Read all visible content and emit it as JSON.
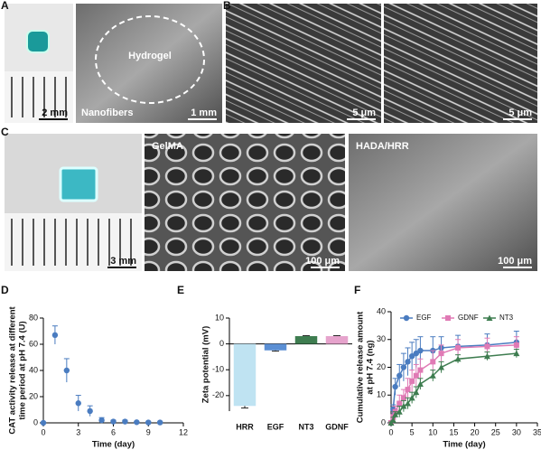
{
  "panel_letters": [
    "A",
    "B",
    "C",
    "D",
    "E",
    "F"
  ],
  "images": [
    {
      "scale": "2 mm"
    },
    {
      "labels": [
        "Hydrogel",
        "Nanofibers"
      ],
      "scale": "1 mm"
    },
    {
      "scale": "5 μm"
    },
    {
      "scale": "5 μm"
    },
    {
      "scale": "3 mm"
    },
    {
      "labels": [
        "GelMA"
      ],
      "scale": "100 μm"
    },
    {
      "labels": [
        "HADA/HRR"
      ],
      "scale": "100 μm"
    }
  ],
  "chart_data": [
    {
      "type": "scatter",
      "xlabel": "Time (day)",
      "ylabel": [
        "CAT activity release at different",
        "time period at pH 7.4 (U)"
      ],
      "xlim": [
        0,
        12
      ],
      "xticks": [
        0,
        3,
        6,
        9,
        12
      ],
      "ylim": [
        0,
        80
      ],
      "yticks": [
        0,
        20,
        40,
        60,
        80
      ],
      "series": [
        {
          "color": "#4a7cc0",
          "marker": "circle",
          "x": [
            0,
            1,
            2,
            3,
            4,
            5,
            6,
            7,
            8,
            9,
            10
          ],
          "values": [
            0,
            67,
            40,
            15,
            9,
            2,
            1,
            1,
            0.5,
            0.3,
            0.3
          ],
          "errors": [
            0.5,
            7,
            9,
            6,
            4,
            2,
            1,
            1,
            0.5,
            0.3,
            0.3
          ]
        }
      ]
    },
    {
      "type": "bar",
      "ylabel": [
        "Zeta potential (mV)"
      ],
      "categories": [
        "HRR",
        "EGF",
        "NT3",
        "GDNF"
      ],
      "values": [
        -24,
        -2.5,
        3,
        3
      ],
      "errors": [
        0.8,
        0.3,
        0.2,
        0.2
      ],
      "colors": [
        "#bfe3f2",
        "#5b8fd4",
        "#3e7d50",
        "#e6a3cc"
      ],
      "ylim": [
        -26,
        10
      ],
      "yticks": [
        -20,
        -10,
        0,
        10
      ]
    },
    {
      "type": "line",
      "xlabel": "Time (day)",
      "ylabel": [
        "Cumulative release amount",
        "at pH 7.4 (ng)"
      ],
      "xlim": [
        0,
        35
      ],
      "xticks": [
        0,
        5,
        10,
        15,
        20,
        25,
        30,
        35
      ],
      "ylim": [
        0,
        40
      ],
      "yticks": [
        0,
        10,
        20,
        30,
        40
      ],
      "x": [
        0,
        0.5,
        1,
        2,
        3,
        4,
        5,
        6,
        7,
        10,
        12,
        16,
        23,
        30
      ],
      "series": [
        {
          "name": "EGF",
          "color": "#4a7cc0",
          "marker": "circle",
          "values": [
            0,
            5,
            13,
            17,
            20,
            22,
            24,
            25,
            26,
            26,
            27,
            27.5,
            28,
            29
          ],
          "errors": [
            0.5,
            1.5,
            3,
            4,
            5,
            5,
            5,
            5,
            5,
            5,
            4,
            4,
            4,
            4
          ]
        },
        {
          "name": "GDNF",
          "color": "#e07ab5",
          "marker": "square",
          "values": [
            0,
            2,
            4,
            7,
            9,
            12,
            15,
            17,
            19,
            22,
            25,
            27,
            27.5,
            28
          ],
          "errors": [
            0.5,
            1,
            2,
            3,
            3,
            4,
            4,
            4,
            4,
            4,
            3,
            3,
            3,
            3
          ]
        },
        {
          "name": "NT3",
          "color": "#3e7d50",
          "marker": "triangle",
          "values": [
            0,
            1,
            3,
            4,
            6,
            7,
            9,
            11,
            14,
            17,
            20,
            23,
            24,
            25
          ],
          "errors": [
            0.3,
            1,
            1,
            2,
            2,
            2,
            2,
            2,
            2,
            2,
            2,
            1.5,
            1.5,
            1.5
          ]
        }
      ]
    }
  ]
}
